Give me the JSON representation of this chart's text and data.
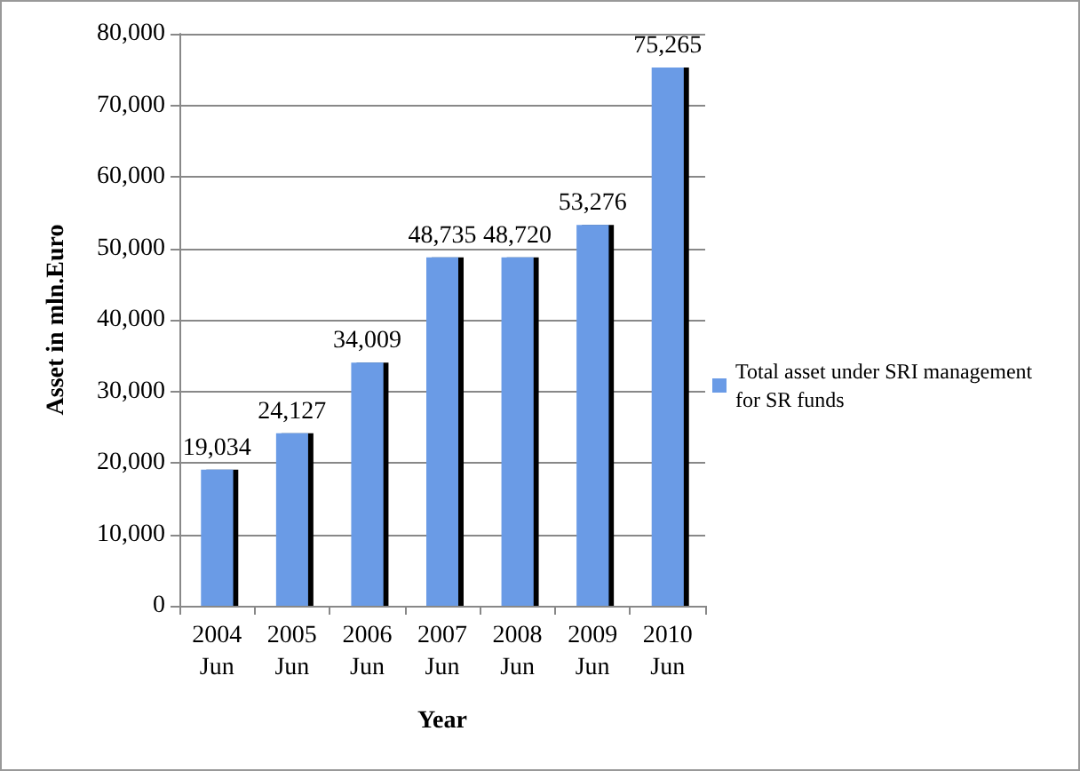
{
  "chart_data": {
    "type": "bar",
    "xlabel": "Year",
    "ylabel": "Asset in mln.Euro",
    "categories": [
      "2004\nJun",
      "2005\nJun",
      "2006\nJun",
      "2007\nJun",
      "2008\nJun",
      "2009\nJun",
      "2010\nJun"
    ],
    "series": [
      {
        "name": "Total asset under SRI management for SR funds",
        "color": "#6a9be6",
        "values": [
          19034,
          24127,
          34009,
          48735,
          48720,
          53276,
          75265
        ],
        "value_labels": [
          "19,034",
          "24,127",
          "34,009",
          "48,735",
          "48,720",
          "53,276",
          "75,265"
        ]
      }
    ],
    "ylim": [
      0,
      80000
    ],
    "yticks": [
      0,
      {
        "value": 10000,
        "label": "10,000"
      },
      {
        "value": 20000,
        "label": "20,000"
      },
      {
        "value": 30000,
        "label": "30,000"
      },
      {
        "value": 40000,
        "label": "40,000"
      },
      {
        "value": 50000,
        "label": "50,000"
      },
      {
        "value": 60000,
        "label": "60,000"
      },
      {
        "value": 70000,
        "label": "70,000"
      },
      {
        "value": 80000,
        "label": "80,000"
      }
    ],
    "grid": "y",
    "legend": "right"
  }
}
